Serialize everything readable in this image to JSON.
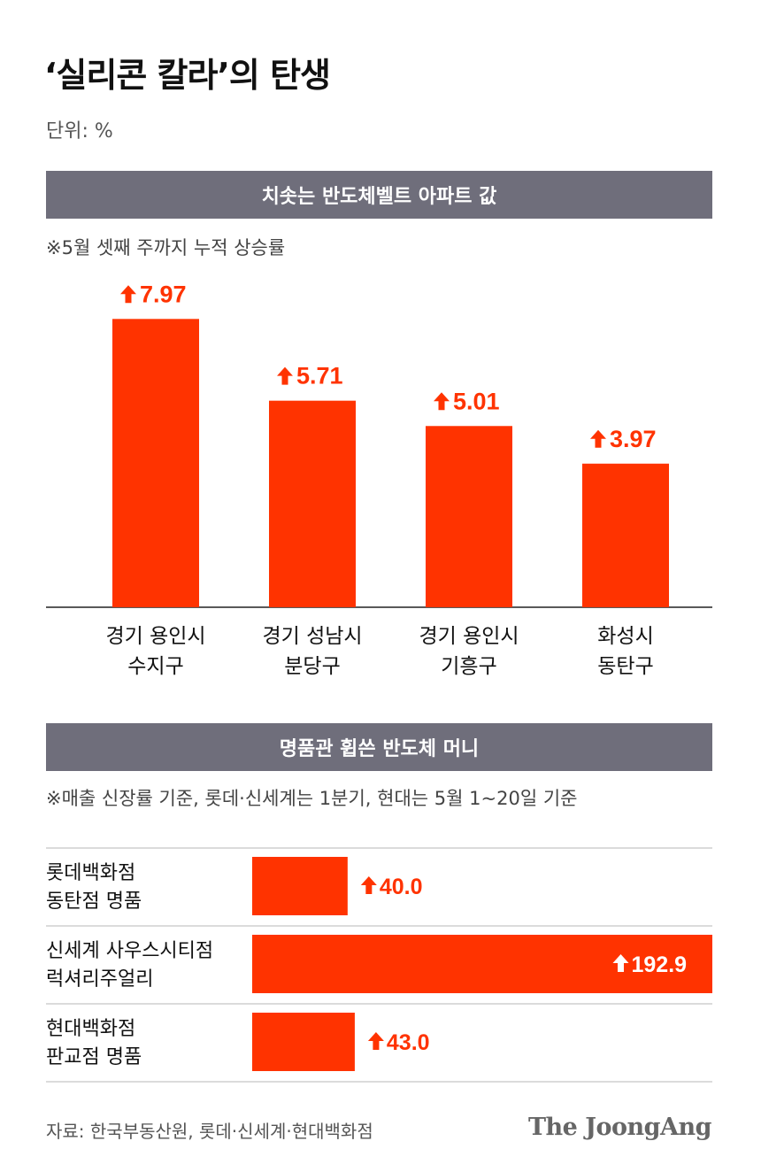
{
  "title": "‘실리콘 칼라’의 탄생",
  "unit": "단위: %",
  "source": "자료: 한국부동산원, 롯데·신세계·현대백화점",
  "logo": "The JoongAng",
  "colors": {
    "bar": "#ff3300",
    "band": "#6f6e7b",
    "arrow": "up-arrow-icon"
  },
  "chart_data": [
    {
      "type": "bar",
      "title": "치솟는 반도체벨트 아파트 값",
      "subtitle": "※5월 셋째 주까지 누적 상승률",
      "categories": [
        [
          "경기 용인시",
          "수지구"
        ],
        [
          "경기 성남시",
          "분당구"
        ],
        [
          "경기 용인시",
          "기흥구"
        ],
        [
          "화성시",
          "동탄구"
        ]
      ],
      "values": [
        7.97,
        5.71,
        5.01,
        3.97
      ],
      "value_labels": [
        "7.97",
        "5.71",
        "5.01",
        "3.97"
      ],
      "ylim": [
        0,
        8.1
      ]
    },
    {
      "type": "bar",
      "orientation": "horizontal",
      "title": "명품관 휩쓴 반도체 머니",
      "subtitle": "※매출 신장률 기준, 롯데·신세계는 1분기, 현대는 5월 1~20일 기준",
      "categories": [
        [
          "롯데백화점",
          "동탄점 명품"
        ],
        [
          "신세계 사우스시티점",
          "럭셔리주얼리"
        ],
        [
          "현대백화점",
          "판교점 명품"
        ]
      ],
      "values": [
        40.0,
        192.9,
        43.0
      ],
      "value_labels": [
        "40.0",
        "192.9",
        "43.0"
      ],
      "xlim": [
        0,
        192.9
      ]
    }
  ]
}
